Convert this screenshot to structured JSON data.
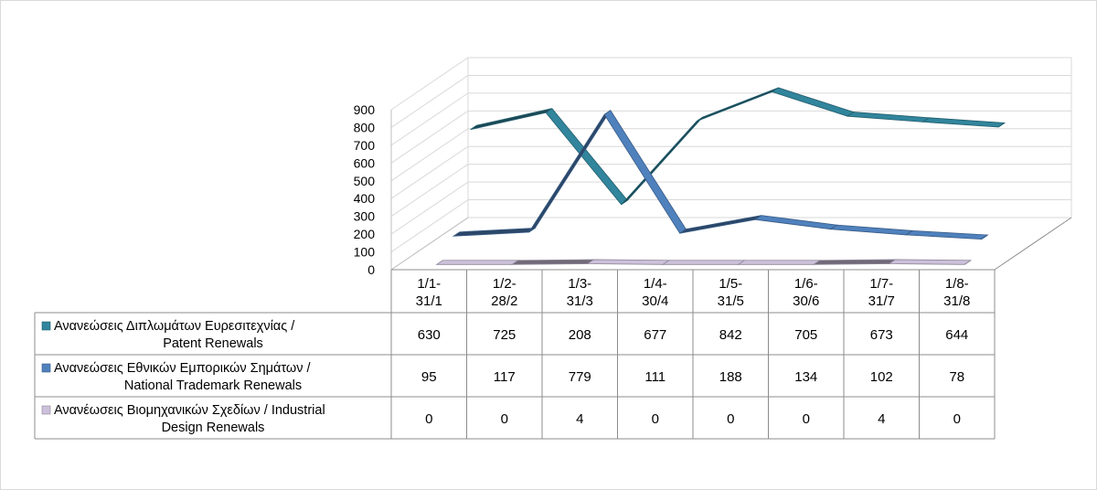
{
  "chart_data": {
    "type": "line",
    "style": "3d-line-with-data-table",
    "categories": [
      [
        "1/1-",
        "31/1"
      ],
      [
        "1/2-",
        "28/2"
      ],
      [
        "1/3-",
        "31/3"
      ],
      [
        "1/4-",
        "30/4"
      ],
      [
        "1/5-",
        "31/5"
      ],
      [
        "1/6-",
        "30/6"
      ],
      [
        "1/7-",
        "31/7"
      ],
      [
        "1/8-",
        "31/8"
      ]
    ],
    "ylim": [
      0,
      900
    ],
    "yticks": [
      "0",
      "100",
      "200",
      "300",
      "400",
      "500",
      "600",
      "700",
      "800",
      "900"
    ],
    "grid": true,
    "legend": "data-table",
    "series": [
      {
        "name": [
          "Ανανεώσεις Διπλωμάτων Ευρεσιτεχνίας  /",
          "Patent Renewals"
        ],
        "color": "#31859c",
        "values": [
          630,
          725,
          208,
          677,
          842,
          705,
          673,
          644
        ],
        "labels": [
          "630",
          "725",
          "208",
          "677",
          "842",
          "705",
          "673",
          "644"
        ]
      },
      {
        "name": [
          "Ανανεώσεις Εθνικών Εμπορικών Σημάτων /",
          "National Trademark Renewals"
        ],
        "color": "#4f81bd",
        "values": [
          95,
          117,
          779,
          111,
          188,
          134,
          102,
          78
        ],
        "labels": [
          "95",
          "117",
          "779",
          "111",
          "188",
          "134",
          "102",
          "78"
        ]
      },
      {
        "name": [
          "Ανανέωσεις Βιομηχανικών Σχεδίων / Industrial",
          "Design Renewals"
        ],
        "color": "#ccc0da",
        "values": [
          0,
          0,
          4,
          0,
          0,
          0,
          4,
          0
        ],
        "labels": [
          "0",
          "0",
          "4",
          "0",
          "0",
          "0",
          "4",
          "0"
        ]
      }
    ]
  }
}
